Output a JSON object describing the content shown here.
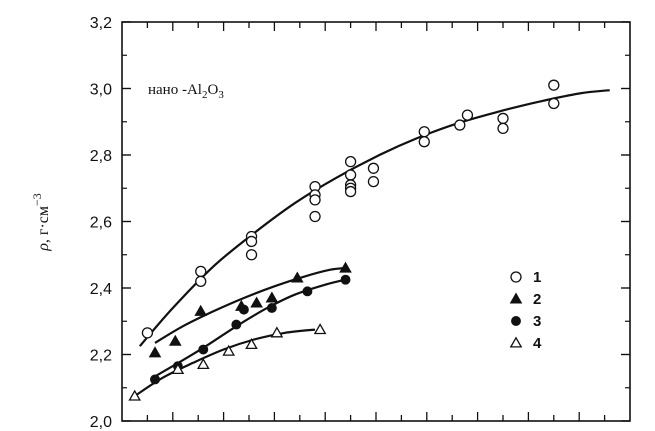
{
  "chart_data": {
    "type": "scatter",
    "annotation": {
      "prefix": "нано -Al",
      "sub1": "2",
      "mid": "O",
      "sub2": "3"
    },
    "ylabel": {
      "rho": "ρ",
      "unit": ", г·см",
      "exp": "−3"
    },
    "ylim": [
      2.0,
      3.2
    ],
    "yticks": [
      "2,0",
      "2,2",
      "2,4",
      "2,6",
      "2,8",
      "3,0",
      "3,2"
    ],
    "ytick_values": [
      2.0,
      2.2,
      2.4,
      2.6,
      2.8,
      3.0,
      3.2
    ],
    "xlim": [
      0,
      100
    ],
    "grid": false,
    "legend_position": "right",
    "series": [
      {
        "label": "1",
        "marker": "circle-open",
        "x": [
          5,
          15.5,
          15.5,
          25.5,
          25.5,
          25.5,
          38,
          38,
          38,
          38,
          45,
          45,
          45,
          45,
          45,
          49.5,
          49.5,
          59.5,
          59.5,
          66.5,
          68,
          75,
          75,
          85,
          85
        ],
        "y": [
          2.265,
          2.45,
          2.42,
          2.555,
          2.54,
          2.5,
          2.705,
          2.68,
          2.665,
          2.615,
          2.78,
          2.74,
          2.71,
          2.7,
          2.69,
          2.76,
          2.72,
          2.87,
          2.84,
          2.89,
          2.92,
          2.91,
          2.88,
          3.01,
          2.955
        ],
        "curve_x": [
          3.5,
          10,
          18,
          26,
          34,
          42,
          50,
          58,
          66,
          74,
          82,
          90,
          96
        ],
        "curve_y": [
          2.225,
          2.34,
          2.465,
          2.565,
          2.655,
          2.73,
          2.795,
          2.85,
          2.895,
          2.93,
          2.96,
          2.985,
          2.995
        ]
      },
      {
        "label": "2",
        "marker": "triangle-filled",
        "x": [
          6.5,
          10.5,
          15.5,
          23.5,
          26.5,
          29.5,
          34.5,
          44
        ],
        "y": [
          2.205,
          2.24,
          2.33,
          2.345,
          2.355,
          2.37,
          2.43,
          2.46
        ],
        "curve_x": [
          6.5,
          12,
          18,
          24,
          30,
          36,
          41,
          44
        ],
        "curve_y": [
          2.235,
          2.285,
          2.33,
          2.37,
          2.405,
          2.435,
          2.455,
          2.46
        ]
      },
      {
        "label": "3",
        "marker": "circle-filled",
        "x": [
          6.5,
          11,
          16,
          22.5,
          24,
          29.5,
          36.5,
          44
        ],
        "y": [
          2.125,
          2.165,
          2.215,
          2.29,
          2.335,
          2.34,
          2.39,
          2.425
        ],
        "curve_x": [
          6,
          10,
          16,
          22,
          28,
          34,
          40,
          44
        ],
        "curve_y": [
          2.13,
          2.165,
          2.22,
          2.28,
          2.335,
          2.38,
          2.41,
          2.425
        ]
      },
      {
        "label": "4",
        "marker": "triangle-open",
        "x": [
          2.5,
          11,
          16,
          21,
          25.5,
          30.5,
          39
        ],
        "y": [
          2.075,
          2.155,
          2.17,
          2.21,
          2.23,
          2.265,
          2.275
        ],
        "curve_x": [
          2.5,
          8,
          14,
          20,
          26,
          32,
          38
        ],
        "curve_y": [
          2.075,
          2.13,
          2.175,
          2.215,
          2.245,
          2.265,
          2.275
        ]
      }
    ]
  }
}
